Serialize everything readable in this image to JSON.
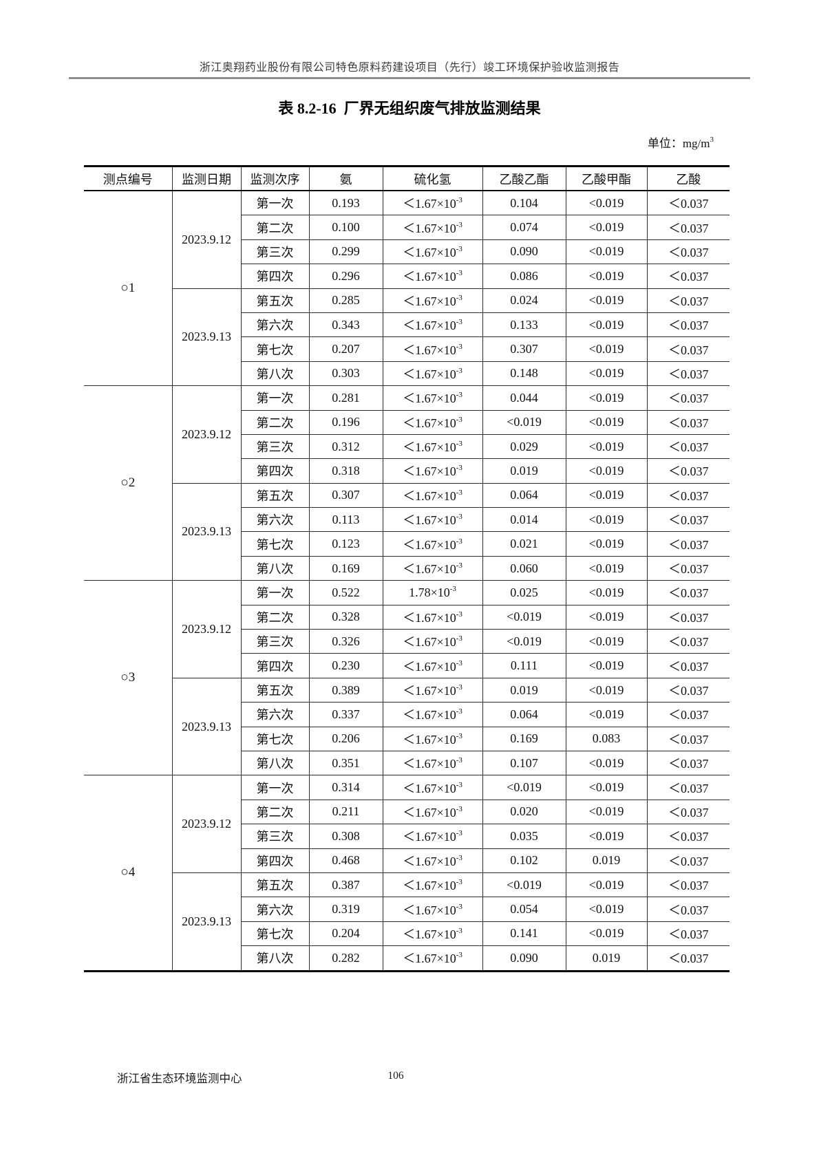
{
  "page": {
    "header": "浙江奥翔药业股份有限公司特色原料药建设项目（先行）竣工环境保护验收监测报告",
    "title": "表 8.2-16  厂界无组织废气排放监测结果",
    "unit_label": "单位：mg/m^3",
    "footer_left": "浙江省生态环境监测中心",
    "page_number": "106"
  },
  "table": {
    "columns": [
      "测点编号",
      "监测日期",
      "监测次序",
      "氨",
      "硫化氢",
      "乙酸乙酯",
      "乙酸甲酯",
      "乙酸"
    ],
    "sections": [
      {
        "point": "○1",
        "dates": [
          {
            "date": "2023.9.12",
            "rows": [
              {
                "seq": "第一次",
                "nh3": "0.193",
                "h2s": "＜1.67×10^-3",
                "ea": "0.104",
                "ma": "<0.019",
                "aa": "＜0.037"
              },
              {
                "seq": "第二次",
                "nh3": "0.100",
                "h2s": "＜1.67×10^-3",
                "ea": "0.074",
                "ma": "<0.019",
                "aa": "＜0.037"
              },
              {
                "seq": "第三次",
                "nh3": "0.299",
                "h2s": "＜1.67×10^-3",
                "ea": "0.090",
                "ma": "<0.019",
                "aa": "＜0.037"
              },
              {
                "seq": "第四次",
                "nh3": "0.296",
                "h2s": "＜1.67×10^-3",
                "ea": "0.086",
                "ma": "<0.019",
                "aa": "＜0.037"
              }
            ]
          },
          {
            "date": "2023.9.13",
            "rows": [
              {
                "seq": "第五次",
                "nh3": "0.285",
                "h2s": "＜1.67×10^-3",
                "ea": "0.024",
                "ma": "<0.019",
                "aa": "＜0.037"
              },
              {
                "seq": "第六次",
                "nh3": "0.343",
                "h2s": "＜1.67×10^-3",
                "ea": "0.133",
                "ma": "<0.019",
                "aa": "＜0.037"
              },
              {
                "seq": "第七次",
                "nh3": "0.207",
                "h2s": "＜1.67×10^-3",
                "ea": "0.307",
                "ma": "<0.019",
                "aa": "＜0.037"
              },
              {
                "seq": "第八次",
                "nh3": "0.303",
                "h2s": "＜1.67×10^-3",
                "ea": "0.148",
                "ma": "<0.019",
                "aa": "＜0.037"
              }
            ]
          }
        ]
      },
      {
        "point": "○2",
        "dates": [
          {
            "date": "2023.9.12",
            "rows": [
              {
                "seq": "第一次",
                "nh3": "0.281",
                "h2s": "＜1.67×10^-3",
                "ea": "0.044",
                "ma": "<0.019",
                "aa": "＜0.037"
              },
              {
                "seq": "第二次",
                "nh3": "0.196",
                "h2s": "＜1.67×10^-3",
                "ea": "<0.019",
                "ma": "<0.019",
                "aa": "＜0.037"
              },
              {
                "seq": "第三次",
                "nh3": "0.312",
                "h2s": "＜1.67×10^-3",
                "ea": "0.029",
                "ma": "<0.019",
                "aa": "＜0.037"
              },
              {
                "seq": "第四次",
                "nh3": "0.318",
                "h2s": "＜1.67×10^-3",
                "ea": "0.019",
                "ma": "<0.019",
                "aa": "＜0.037"
              }
            ]
          },
          {
            "date": "2023.9.13",
            "rows": [
              {
                "seq": "第五次",
                "nh3": "0.307",
                "h2s": "＜1.67×10^-3",
                "ea": "0.064",
                "ma": "<0.019",
                "aa": "＜0.037"
              },
              {
                "seq": "第六次",
                "nh3": "0.113",
                "h2s": "＜1.67×10^-3",
                "ea": "0.014",
                "ma": "<0.019",
                "aa": "＜0.037"
              },
              {
                "seq": "第七次",
                "nh3": "0.123",
                "h2s": "＜1.67×10^-3",
                "ea": "0.021",
                "ma": "<0.019",
                "aa": "＜0.037"
              },
              {
                "seq": "第八次",
                "nh3": "0.169",
                "h2s": "＜1.67×10^-3",
                "ea": "0.060",
                "ma": "<0.019",
                "aa": "＜0.037"
              }
            ]
          }
        ]
      },
      {
        "point": "○3",
        "dates": [
          {
            "date": "2023.9.12",
            "rows": [
              {
                "seq": "第一次",
                "nh3": "0.522",
                "h2s": "1.78×10^-3",
                "ea": "0.025",
                "ma": "<0.019",
                "aa": "＜0.037"
              },
              {
                "seq": "第二次",
                "nh3": "0.328",
                "h2s": "＜1.67×10^-3",
                "ea": "<0.019",
                "ma": "<0.019",
                "aa": "＜0.037"
              },
              {
                "seq": "第三次",
                "nh3": "0.326",
                "h2s": "＜1.67×10^-3",
                "ea": "<0.019",
                "ma": "<0.019",
                "aa": "＜0.037"
              },
              {
                "seq": "第四次",
                "nh3": "0.230",
                "h2s": "＜1.67×10^-3",
                "ea": "0.111",
                "ma": "<0.019",
                "aa": "＜0.037"
              }
            ]
          },
          {
            "date": "2023.9.13",
            "rows": [
              {
                "seq": "第五次",
                "nh3": "0.389",
                "h2s": "＜1.67×10^-3",
                "ea": "0.019",
                "ma": "<0.019",
                "aa": "＜0.037"
              },
              {
                "seq": "第六次",
                "nh3": "0.337",
                "h2s": "＜1.67×10^-3",
                "ea": "0.064",
                "ma": "<0.019",
                "aa": "＜0.037"
              },
              {
                "seq": "第七次",
                "nh3": "0.206",
                "h2s": "＜1.67×10^-3",
                "ea": "0.169",
                "ma": "0.083",
                "aa": "＜0.037"
              },
              {
                "seq": "第八次",
                "nh3": "0.351",
                "h2s": "＜1.67×10^-3",
                "ea": "0.107",
                "ma": "<0.019",
                "aa": "＜0.037"
              }
            ]
          }
        ]
      },
      {
        "point": "○4",
        "dates": [
          {
            "date": "2023.9.12",
            "rows": [
              {
                "seq": "第一次",
                "nh3": "0.314",
                "h2s": "＜1.67×10^-3",
                "ea": "<0.019",
                "ma": "<0.019",
                "aa": "＜0.037"
              },
              {
                "seq": "第二次",
                "nh3": "0.211",
                "h2s": "＜1.67×10^-3",
                "ea": "0.020",
                "ma": "<0.019",
                "aa": "＜0.037"
              },
              {
                "seq": "第三次",
                "nh3": "0.308",
                "h2s": "＜1.67×10^-3",
                "ea": "0.035",
                "ma": "<0.019",
                "aa": "＜0.037"
              },
              {
                "seq": "第四次",
                "nh3": "0.468",
                "h2s": "＜1.67×10^-3",
                "ea": "0.102",
                "ma": "0.019",
                "aa": "＜0.037"
              }
            ]
          },
          {
            "date": "2023.9.13",
            "rows": [
              {
                "seq": "第五次",
                "nh3": "0.387",
                "h2s": "＜1.67×10^-3",
                "ea": "<0.019",
                "ma": "<0.019",
                "aa": "＜0.037"
              },
              {
                "seq": "第六次",
                "nh3": "0.319",
                "h2s": "＜1.67×10^-3",
                "ea": "0.054",
                "ma": "<0.019",
                "aa": "＜0.037"
              },
              {
                "seq": "第七次",
                "nh3": "0.204",
                "h2s": "＜1.67×10^-3",
                "ea": "0.141",
                "ma": "<0.019",
                "aa": "＜0.037"
              },
              {
                "seq": "第八次",
                "nh3": "0.282",
                "h2s": "＜1.67×10^-3",
                "ea": "0.090",
                "ma": "0.019",
                "aa": "＜0.037"
              }
            ]
          }
        ]
      }
    ]
  }
}
